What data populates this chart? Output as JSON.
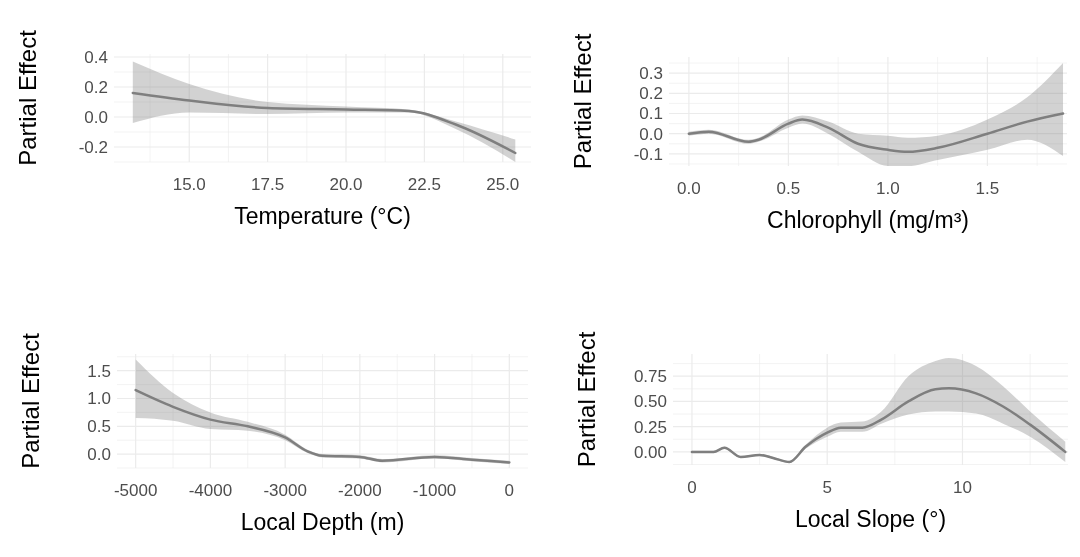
{
  "chart_data": [
    {
      "type": "line",
      "xlabel": "Temperature (°C)",
      "ylabel": "Partial Effect",
      "grid": true,
      "xlim": [
        12.6,
        25.9
      ],
      "ylim": [
        -0.3,
        0.42
      ],
      "xticks": [
        {
          "value": 13.75,
          "label": null
        },
        {
          "value": 15,
          "label": "15.0"
        },
        {
          "value": 16.25,
          "label": null
        },
        17.5,
        {
          "value": 18.75,
          "label": null
        },
        {
          "value": 20,
          "label": "20.0"
        },
        {
          "value": 21.25,
          "label": null
        },
        22.5,
        {
          "value": 23.75,
          "label": null
        },
        {
          "value": 25,
          "label": "25.0"
        }
      ],
      "yticks": [
        {
          "value": -0.3,
          "label": null
        },
        {
          "value": -0.2,
          "label": "-0.2"
        },
        {
          "value": -0.1,
          "label": null
        },
        {
          "value": 0,
          "label": "0.0"
        },
        {
          "value": 0.1,
          "label": null
        },
        {
          "value": 0.2,
          "label": "0.2"
        },
        {
          "value": 0.3,
          "label": null
        },
        {
          "value": 0.4,
          "label": "0.4"
        }
      ],
      "series": [
        {
          "color": "#7f7f7f",
          "x": [
            13.2,
            15,
            17.5,
            20,
            22,
            23.5,
            25.4
          ],
          "values": [
            0.16,
            0.11,
            0.06,
            0.05,
            0.04,
            -0.05,
            -0.24
          ],
          "lower": [
            -0.04,
            0.03,
            0.02,
            0.03,
            0.03,
            -0.08,
            -0.3
          ],
          "upper": [
            0.37,
            0.22,
            0.1,
            0.07,
            0.05,
            -0.03,
            -0.15
          ]
        }
      ]
    },
    {
      "type": "line",
      "xlabel": "Chlorophyll (mg/m³)",
      "ylabel": "Partial Effect",
      "grid": true,
      "xlim": [
        -0.1,
        1.9
      ],
      "ylim": [
        -0.16,
        0.38
      ],
      "xticks": [
        {
          "value": 0,
          "label": "0.0"
        },
        {
          "value": 0.25,
          "label": null
        },
        0.5,
        {
          "value": 0.75,
          "label": null
        },
        {
          "value": 1,
          "label": "1.0"
        },
        {
          "value": 1.25,
          "label": null
        },
        1.5,
        {
          "value": 1.75,
          "label": null
        }
      ],
      "yticks": [
        {
          "value": -0.15,
          "label": null
        },
        {
          "value": -0.1,
          "label": "-0.1"
        },
        {
          "value": -0.05,
          "label": null
        },
        {
          "value": 0,
          "label": "0.0"
        },
        {
          "value": 0.05,
          "label": null
        },
        0.1,
        {
          "value": 0.15,
          "label": null
        },
        0.2,
        {
          "value": 0.25,
          "label": null
        },
        0.3,
        {
          "value": 0.35,
          "label": null
        }
      ],
      "series": [
        {
          "color": "#7f7f7f",
          "x": [
            0,
            0.1,
            0.3,
            0.35,
            0.5,
            0.57,
            0.7,
            0.85,
            1.0,
            1.1,
            1.25,
            1.5,
            1.7,
            1.88
          ],
          "values": [
            0.0,
            0.01,
            -0.04,
            -0.03,
            0.05,
            0.07,
            0.03,
            -0.05,
            -0.08,
            -0.09,
            -0.07,
            0.0,
            0.06,
            0.1
          ],
          "lower": [
            -0.01,
            0.0,
            -0.05,
            -0.04,
            0.03,
            0.05,
            0.0,
            -0.09,
            -0.16,
            -0.16,
            -0.13,
            -0.08,
            -0.03,
            -0.11
          ],
          "upper": [
            0.01,
            0.02,
            -0.03,
            -0.02,
            0.07,
            0.09,
            0.06,
            0.0,
            -0.01,
            -0.02,
            -0.01,
            0.07,
            0.18,
            0.35
          ]
        }
      ]
    },
    {
      "type": "line",
      "xlabel": "Local Depth (m)",
      "ylabel": "Partial Effect",
      "grid": true,
      "xlim": [
        -5250,
        250
      ],
      "ylim": [
        -0.25,
        1.8
      ],
      "xticks": [
        -5000,
        {
          "value": -4500,
          "label": null
        },
        -4000,
        {
          "value": -3500,
          "label": null
        },
        -3000,
        {
          "value": -2500,
          "label": null
        },
        -2000,
        {
          "value": -1500,
          "label": null
        },
        -1000,
        {
          "value": -500,
          "label": null
        },
        0
      ],
      "yticks": [
        {
          "value": -0.25,
          "label": null
        },
        {
          "value": 0,
          "label": "0.0"
        },
        {
          "value": 0.25,
          "label": null
        },
        0.5,
        {
          "value": 0.75,
          "label": null
        },
        {
          "value": 1,
          "label": "1.0"
        },
        {
          "value": 1.25,
          "label": null
        },
        1.5,
        {
          "value": 1.75,
          "label": null
        }
      ],
      "series": [
        {
          "color": "#7f7f7f",
          "x": [
            -5000,
            -4500,
            -4000,
            -3500,
            -3000,
            -2700,
            -2500,
            -2000,
            -1700,
            -1000,
            -500,
            0
          ],
          "values": [
            1.15,
            0.85,
            0.62,
            0.5,
            0.3,
            0.05,
            -0.03,
            -0.05,
            -0.12,
            -0.05,
            -0.1,
            -0.15
          ],
          "lower": [
            0.65,
            0.6,
            0.45,
            0.42,
            0.25,
            0.02,
            -0.06,
            -0.08,
            -0.15,
            -0.08,
            -0.13,
            -0.18
          ],
          "upper": [
            1.7,
            1.1,
            0.75,
            0.58,
            0.35,
            0.08,
            0.0,
            -0.02,
            -0.09,
            -0.02,
            -0.07,
            -0.12
          ]
        }
      ]
    },
    {
      "type": "line",
      "xlabel": "Local Slope (°)",
      "ylabel": "Partial Effect",
      "grid": true,
      "xlim": [
        -0.7,
        13.9
      ],
      "ylim": [
        -0.13,
        0.97
      ],
      "xticks": [
        0,
        {
          "value": 2.5,
          "label": null
        },
        5,
        {
          "value": 7.5,
          "label": null
        },
        10,
        {
          "value": 12.5,
          "label": null
        }
      ],
      "yticks": [
        {
          "value": -0.125,
          "label": null
        },
        {
          "value": 0,
          "label": "0.00"
        },
        {
          "value": 0.125,
          "label": null
        },
        0.25,
        {
          "value": 0.375,
          "label": null
        },
        {
          "value": 0.5,
          "label": "0.50"
        },
        {
          "value": 0.625,
          "label": null
        },
        0.75,
        {
          "value": 0.875,
          "label": null
        }
      ],
      "series": [
        {
          "color": "#7f7f7f",
          "x": [
            0,
            0.8,
            1.2,
            1.8,
            2.5,
            3.0,
            3.6,
            4.2,
            5,
            5.5,
            6.3,
            7,
            8,
            9,
            9.5,
            10.5,
            11.5,
            12.5,
            13.8
          ],
          "values": [
            0.0,
            0.0,
            0.04,
            -0.05,
            -0.03,
            -0.06,
            -0.1,
            0.05,
            0.19,
            0.24,
            0.24,
            0.32,
            0.5,
            0.62,
            0.63,
            0.58,
            0.45,
            0.27,
            0.0
          ],
          "lower": [
            -0.01,
            -0.01,
            0.03,
            -0.06,
            -0.04,
            -0.07,
            -0.11,
            0.03,
            0.15,
            0.2,
            0.2,
            0.28,
            0.37,
            0.4,
            0.4,
            0.38,
            0.28,
            0.15,
            -0.1
          ],
          "upper": [
            0.01,
            0.01,
            0.05,
            -0.04,
            -0.02,
            -0.05,
            -0.09,
            0.07,
            0.24,
            0.29,
            0.3,
            0.4,
            0.75,
            0.9,
            0.93,
            0.85,
            0.65,
            0.4,
            0.1
          ]
        }
      ]
    }
  ]
}
